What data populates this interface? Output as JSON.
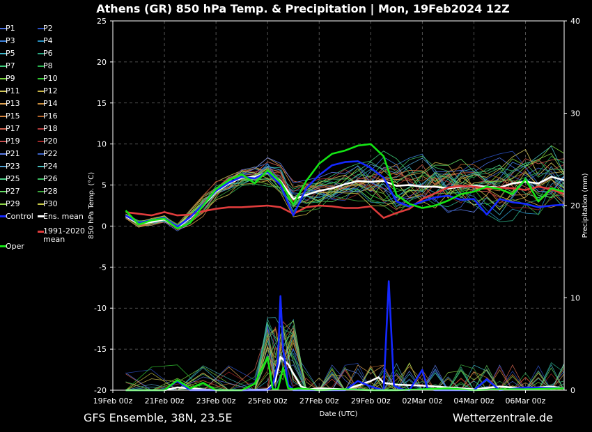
{
  "title": "Athens  (GR)  850 hPa Temp. & Precipitation | Mon, 19Feb2024 12Z",
  "footer": {
    "left": "GFS Ensemble, 38N, 23.5E",
    "right": "Wetterzentrale.de"
  },
  "colors": {
    "background": "#000000",
    "grid": "#666666",
    "ens_mean": "#ffffff",
    "climate_mean": "#e03c3c",
    "control": "#1428ff",
    "oper": "#14e614"
  },
  "legend": [
    {
      "label": "P1",
      "color": "#4a6fe0"
    },
    {
      "label": "P2",
      "color": "#2a4fc0"
    },
    {
      "label": "P3",
      "color": "#3c82dc"
    },
    {
      "label": "P4",
      "color": "#2890c0"
    },
    {
      "label": "P5",
      "color": "#3cb4c8"
    },
    {
      "label": "P6",
      "color": "#2aa882"
    },
    {
      "label": "P7",
      "color": "#3cc878"
    },
    {
      "label": "P8",
      "color": "#28b450"
    },
    {
      "label": "P9",
      "color": "#78d23c"
    },
    {
      "label": "P10",
      "color": "#32c832"
    },
    {
      "label": "P11",
      "color": "#d2c85a"
    },
    {
      "label": "P12",
      "color": "#c8b446"
    },
    {
      "label": "P13",
      "color": "#dca050"
    },
    {
      "label": "P14",
      "color": "#c88c3c"
    },
    {
      "label": "P15",
      "color": "#d2823c"
    },
    {
      "label": "P16",
      "color": "#b4642a"
    },
    {
      "label": "P17",
      "color": "#d26450"
    },
    {
      "label": "P18",
      "color": "#b43c3c"
    },
    {
      "label": "P19",
      "color": "#c85050"
    },
    {
      "label": "P20",
      "color": "#a02828"
    },
    {
      "label": "P21",
      "color": "#5a7ae6"
    },
    {
      "label": "P22",
      "color": "#3c64c8"
    },
    {
      "label": "P23",
      "color": "#50a0d2"
    },
    {
      "label": "P24",
      "color": "#46bebe"
    },
    {
      "label": "P25",
      "color": "#50d28c"
    },
    {
      "label": "P26",
      "color": "#3cbe64"
    },
    {
      "label": "P27",
      "color": "#64dc64"
    },
    {
      "label": "P28",
      "color": "#3caa3c"
    },
    {
      "label": "P29",
      "color": "#8cd246"
    },
    {
      "label": "P30",
      "color": "#c8c846"
    },
    {
      "label": "Control",
      "color": "#1428ff"
    },
    {
      "label": "Ens. mean",
      "color": "#ffffff"
    },
    {
      "label": "1991-2020 mean",
      "color": "#e03c3c"
    },
    {
      "label": "Oper",
      "color": "#14e614"
    }
  ],
  "chart_data": {
    "type": "line",
    "xlabel": "Date (UTC)",
    "ylabel": "850 hPa Temp. (°C)",
    "y2label": "Precipitation (mm)",
    "ylim": [
      -20,
      25
    ],
    "y2lim": [
      0,
      40
    ],
    "yticks": [
      -20,
      -15,
      -10,
      -5,
      0,
      5,
      10,
      15,
      20,
      25
    ],
    "y2ticks": [
      0,
      10,
      20,
      30,
      40
    ],
    "xlim": [
      0,
      17.5
    ],
    "xticks": [
      {
        "x": 0,
        "label": "19Feb 00z"
      },
      {
        "x": 2,
        "label": "21Feb 00z"
      },
      {
        "x": 4,
        "label": "23Feb 00z"
      },
      {
        "x": 6,
        "label": "25Feb 00z"
      },
      {
        "x": 8,
        "label": "27Feb 00z"
      },
      {
        "x": 10,
        "label": "29Feb 00z"
      },
      {
        "x": 12,
        "label": "02Mar 00z"
      },
      {
        "x": 14,
        "label": "04Mar 00z"
      },
      {
        "x": 16,
        "label": "06Mar 00z"
      }
    ],
    "grid": true,
    "series": [
      {
        "name": "Ens. mean",
        "axis": "temp",
        "x": [
          0.5,
          1,
          1.5,
          2,
          2.5,
          3,
          3.5,
          4,
          4.5,
          5,
          5.5,
          6,
          6.5,
          7,
          7.5,
          8,
          8.5,
          9,
          9.5,
          10,
          10.5,
          11,
          11.5,
          12,
          12.5,
          13,
          13.5,
          14,
          14.5,
          15,
          15.5,
          16,
          16.5,
          17,
          17.5
        ],
        "values": [
          1.2,
          0.3,
          0.5,
          0.8,
          -0.2,
          1.0,
          2.5,
          4.2,
          5.2,
          5.9,
          6.0,
          6.5,
          5.5,
          3.3,
          3.8,
          4.3,
          4.6,
          5.1,
          5.5,
          5.4,
          5.5,
          4.9,
          5.0,
          4.8,
          4.8,
          4.6,
          4.8,
          4.9,
          4.8,
          4.7,
          5.2,
          5.4,
          5.2,
          6.0,
          5.6
        ]
      },
      {
        "name": "1991-2020 mean",
        "axis": "temp",
        "x": [
          0.5,
          1,
          1.5,
          2,
          2.5,
          3,
          3.5,
          4,
          4.5,
          5,
          5.5,
          6,
          6.5,
          7,
          7.5,
          8,
          8.5,
          9,
          9.5,
          10,
          10.5,
          11,
          11.5,
          12,
          12.5,
          13,
          13.5,
          14,
          14.5,
          15,
          15.5,
          16,
          16.5,
          17,
          17.5
        ],
        "values": [
          1.7,
          1.5,
          1.3,
          1.7,
          1.3,
          1.4,
          1.8,
          2.1,
          2.3,
          2.3,
          2.4,
          2.5,
          2.3,
          1.5,
          2.3,
          2.5,
          2.4,
          2.2,
          2.2,
          2.4,
          1.0,
          1.6,
          2.1,
          3.3,
          4.0,
          4.7,
          4.9,
          4.8,
          4.6,
          4.7,
          4.6,
          4.4,
          4.8,
          4.5,
          3.9
        ]
      },
      {
        "name": "Control",
        "axis": "temp",
        "x": [
          0.5,
          1,
          1.5,
          2,
          2.5,
          3,
          3.5,
          4,
          4.5,
          5,
          5.5,
          6,
          6.5,
          7,
          7.5,
          8,
          8.5,
          9,
          9.5,
          10,
          10.5,
          11,
          11.5,
          12,
          12.5,
          13,
          13.5,
          14,
          14.5,
          15,
          15.5,
          16,
          16.5,
          17,
          17.5
        ],
        "values": [
          1.3,
          0.4,
          0.7,
          1.0,
          -0.1,
          1.1,
          2.6,
          4.3,
          5.3,
          6.0,
          5.8,
          6.6,
          5.0,
          1.3,
          4.6,
          6.2,
          7.4,
          7.8,
          7.9,
          7.1,
          5.9,
          3.0,
          2.4,
          3.0,
          3.5,
          3.7,
          3.2,
          3.3,
          1.4,
          3.3,
          2.9,
          2.7,
          2.3,
          2.5,
          2.6
        ]
      },
      {
        "name": "Oper",
        "axis": "temp",
        "x": [
          0.5,
          1,
          1.5,
          2,
          2.5,
          3,
          3.5,
          4,
          4.5,
          5,
          5.5,
          6,
          6.5,
          7,
          7.5,
          8,
          8.5,
          9,
          9.5,
          10,
          10.5,
          11,
          11.5,
          12,
          12.5,
          13,
          13.5,
          14,
          14.5,
          15,
          15.5,
          16,
          16.5,
          17,
          17.5
        ],
        "values": [
          1.9,
          0.2,
          0.7,
          0.9,
          -0.3,
          0.4,
          2.5,
          4.5,
          5.6,
          6.3,
          5.2,
          6.8,
          5.4,
          2.6,
          5.5,
          7.6,
          8.8,
          9.2,
          9.8,
          10.0,
          8.5,
          3.8,
          2.7,
          2.2,
          2.5,
          3.1,
          3.9,
          4.2,
          4.8,
          4.5,
          3.9,
          5.7,
          3.0,
          4.6,
          4.2
        ]
      },
      {
        "name": "Ens. mean",
        "axis": "precip",
        "x": [
          0.5,
          2,
          2.5,
          4,
          5,
          6,
          6.3,
          6.5,
          6.8,
          7,
          7.3,
          7.6,
          8,
          9,
          9.5,
          10,
          10.3,
          10.5,
          11,
          12,
          13,
          14,
          15,
          16,
          17,
          17.5
        ],
        "values": [
          0.0,
          0.0,
          0.3,
          0.0,
          0.0,
          0.1,
          1.0,
          3.6,
          2.8,
          1.8,
          0.4,
          0.1,
          0.2,
          0.1,
          0.5,
          1.0,
          1.4,
          0.8,
          0.6,
          0.5,
          0.3,
          0.1,
          0.4,
          0.2,
          0.4,
          0.2
        ]
      },
      {
        "name": "Control",
        "axis": "precip",
        "x": [
          0.5,
          2,
          2.5,
          3,
          6,
          6.2,
          6.4,
          6.5,
          6.6,
          6.8,
          7,
          8,
          9,
          9.5,
          10,
          10.5,
          10.7,
          10.9,
          11.2,
          11.5,
          12,
          12.2,
          12.5,
          13,
          14,
          14.5,
          15,
          16,
          17.5
        ],
        "values": [
          0.0,
          0.0,
          1.0,
          0.0,
          0.0,
          0.5,
          3.0,
          10.2,
          4.5,
          0.6,
          0.0,
          0.0,
          0.0,
          1.0,
          0.4,
          0.0,
          11.8,
          0.5,
          0.1,
          0.0,
          2.2,
          0.2,
          0.0,
          0.0,
          0.0,
          1.2,
          0.0,
          0.3,
          0.2
        ]
      },
      {
        "name": "Oper",
        "axis": "precip",
        "x": [
          0.5,
          1,
          2,
          2.5,
          3,
          3.5,
          4,
          5,
          5.5,
          6,
          6.2,
          6.4,
          6.6,
          6.8,
          7,
          7.2,
          8,
          9,
          10,
          11,
          12,
          13,
          14,
          15,
          16,
          17.5
        ],
        "values": [
          0.0,
          0.0,
          0.0,
          1.1,
          0.2,
          0.8,
          0.0,
          0.0,
          0.7,
          3.6,
          0.1,
          0.1,
          2.4,
          0.2,
          0.1,
          0.2,
          0.0,
          0.1,
          0.0,
          0.0,
          0.1,
          0.2,
          0.0,
          0.1,
          0.1,
          0.2
        ]
      }
    ]
  }
}
